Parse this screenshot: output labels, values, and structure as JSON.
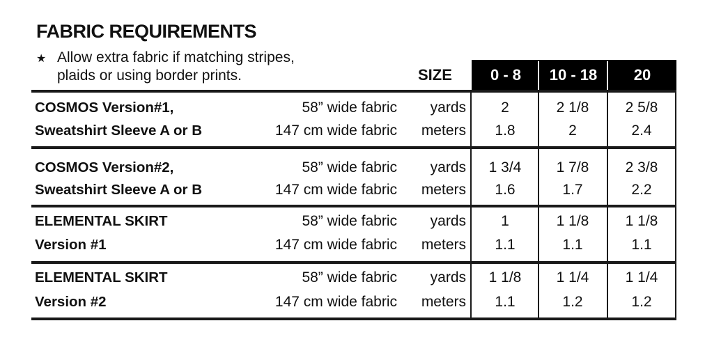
{
  "title": "FABRIC REQUIREMENTS",
  "note": {
    "icon": "star-icon",
    "lines": [
      "Allow extra fabric if matching stripes,",
      "plaids or using border prints."
    ]
  },
  "size_label": "SIZE",
  "sizes": [
    "0 - 8",
    "10 - 18",
    "20"
  ],
  "rows": [
    {
      "label": [
        "COSMOS Version#1,",
        "Sweatshirt Sleeve A or B"
      ],
      "fabric": [
        "58” wide fabric",
        "147 cm wide fabric"
      ],
      "units": [
        "yards",
        "meters"
      ],
      "yards": [
        "2",
        "2 1/8",
        "2 5/8"
      ],
      "meters": [
        "1.8",
        "2",
        "2.4"
      ]
    },
    {
      "label": [
        "COSMOS Version#2,",
        "Sweatshirt Sleeve A or B"
      ],
      "fabric": [
        "58” wide fabric",
        "147 cm wide fabric"
      ],
      "units": [
        "yards",
        "meters"
      ],
      "yards": [
        "1 3/4",
        "1 7/8",
        "2 3/8"
      ],
      "meters": [
        "1.6",
        "1.7",
        "2.2"
      ]
    },
    {
      "label": [
        "ELEMENTAL SKIRT",
        " Version #1"
      ],
      "fabric": [
        "58” wide fabric",
        "147 cm wide fabric"
      ],
      "units": [
        "yards",
        "meters"
      ],
      "yards": [
        "1",
        "1 1/8",
        "1 1/8"
      ],
      "meters": [
        "1.1",
        "1.1",
        "1.1"
      ]
    },
    {
      "label": [
        "ELEMENTAL SKIRT",
        " Version #2"
      ],
      "fabric": [
        "58” wide fabric",
        "147 cm wide fabric"
      ],
      "units": [
        "yards",
        "meters"
      ],
      "yards": [
        "1 1/8",
        "1 1/4",
        "1 1/4"
      ],
      "meters": [
        "1.1",
        "1.2",
        "1.2"
      ]
    }
  ]
}
